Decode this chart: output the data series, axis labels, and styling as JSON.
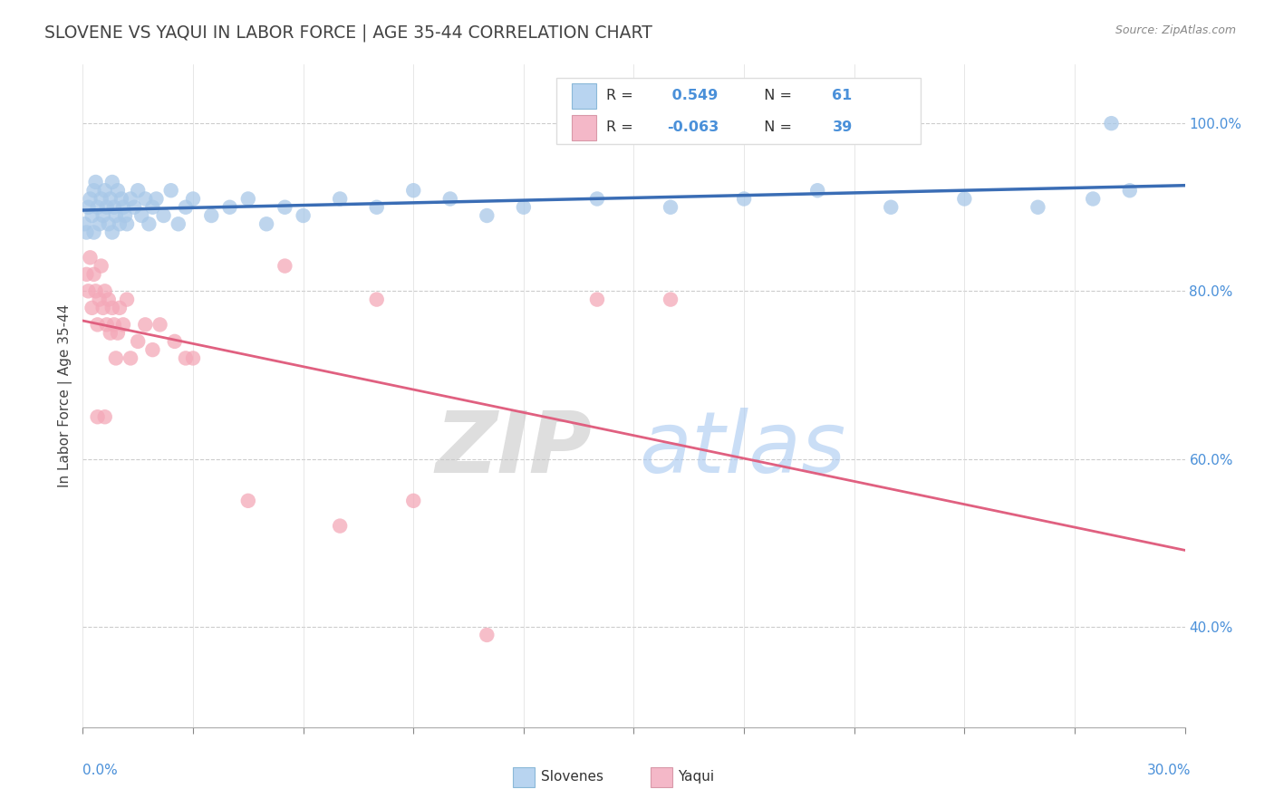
{
  "title": "SLOVENE VS YAQUI IN LABOR FORCE | AGE 35-44 CORRELATION CHART",
  "source_text": "Source: ZipAtlas.com",
  "ylabel": "In Labor Force | Age 35-44",
  "xlim": [
    0.0,
    30.0
  ],
  "ylim": [
    28.0,
    107.0
  ],
  "slovene_R": 0.549,
  "slovene_N": 61,
  "yaqui_R": -0.063,
  "yaqui_N": 39,
  "slovene_color": "#a8c8e8",
  "slovene_line_color": "#3a6db5",
  "yaqui_color": "#f4a8b8",
  "yaqui_line_color": "#e06080",
  "watermark_zip": "ZIP",
  "watermark_atlas": "atlas",
  "watermark_zip_color": "#c8c8c8",
  "watermark_atlas_color": "#a8c8f0",
  "background_color": "#ffffff",
  "grid_color": "#cccccc",
  "ytick_color": "#4a90d9",
  "xtick_label_color": "#4a90d9",
  "slovene_x": [
    0.05,
    0.1,
    0.15,
    0.2,
    0.25,
    0.3,
    0.35,
    0.4,
    0.45,
    0.5,
    0.55,
    0.6,
    0.65,
    0.7,
    0.75,
    0.8,
    0.85,
    0.9,
    0.95,
    1.0,
    1.05,
    1.1,
    1.15,
    1.2,
    1.3,
    1.4,
    1.5,
    1.6,
    1.7,
    1.8,
    1.9,
    2.0,
    2.2,
    2.4,
    2.6,
    2.8,
    3.0,
    3.5,
    4.0,
    4.5,
    5.0,
    5.5,
    6.0,
    7.0,
    8.0,
    9.0,
    10.0,
    11.0,
    12.0,
    14.0,
    16.0,
    18.0,
    20.0,
    22.0,
    24.0,
    26.0,
    27.5,
    28.5,
    0.3,
    0.8,
    28.0
  ],
  "slovene_y": [
    88,
    87,
    90,
    91,
    89,
    92,
    93,
    90,
    88,
    91,
    89,
    92,
    90,
    88,
    91,
    87,
    90,
    89,
    92,
    88,
    91,
    90,
    89,
    88,
    91,
    90,
    92,
    89,
    91,
    88,
    90,
    91,
    89,
    92,
    88,
    90,
    91,
    89,
    90,
    91,
    88,
    90,
    89,
    91,
    90,
    92,
    91,
    89,
    90,
    91,
    90,
    91,
    92,
    90,
    91,
    90,
    91,
    92,
    87,
    93,
    100
  ],
  "yaqui_x": [
    0.1,
    0.15,
    0.2,
    0.25,
    0.3,
    0.35,
    0.4,
    0.45,
    0.5,
    0.55,
    0.6,
    0.65,
    0.7,
    0.75,
    0.8,
    0.85,
    0.9,
    0.95,
    1.0,
    1.1,
    1.2,
    1.3,
    1.5,
    1.7,
    1.9,
    2.1,
    2.5,
    3.0,
    4.5,
    5.5,
    7.0,
    8.0,
    11.0,
    14.0,
    16.0,
    0.4,
    0.6,
    2.8,
    9.0
  ],
  "yaqui_y": [
    82,
    80,
    84,
    78,
    82,
    80,
    76,
    79,
    83,
    78,
    80,
    76,
    79,
    75,
    78,
    76,
    72,
    75,
    78,
    76,
    79,
    72,
    74,
    76,
    73,
    76,
    74,
    72,
    55,
    83,
    52,
    79,
    39,
    79,
    79,
    65,
    65,
    72,
    55
  ]
}
